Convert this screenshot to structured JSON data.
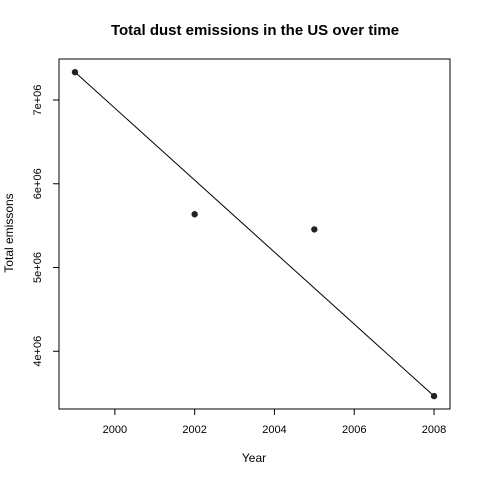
{
  "chart_data": {
    "type": "scatter",
    "title": "Total dust emissions in the US over time",
    "xlabel": "Year",
    "ylabel": "Total emissons",
    "x_ticks": [
      2000,
      2002,
      2004,
      2006,
      2008
    ],
    "x_tick_labels": [
      "2000",
      "2002",
      "2004",
      "2006",
      "2008"
    ],
    "y_ticks": [
      4000000,
      5000000,
      6000000,
      7000000
    ],
    "y_tick_labels": [
      "4e+06",
      "5e+06",
      "6e+06",
      "7e+06"
    ],
    "xlim": [
      1998.6,
      2008.4
    ],
    "ylim": [
      3310000,
      7490000
    ],
    "points": [
      {
        "x": 1999,
        "y": 7332967
      },
      {
        "x": 2002,
        "y": 5635780
      },
      {
        "x": 2005,
        "y": 5454703
      },
      {
        "x": 2008,
        "y": 3464206
      }
    ],
    "trend_line": {
      "x": [
        1999,
        2008
      ],
      "y": [
        7332967,
        3464206
      ]
    },
    "grid": false,
    "legend": "none",
    "colors": {
      "points": "#222222",
      "line": "#000000",
      "frame": "#000000"
    }
  }
}
